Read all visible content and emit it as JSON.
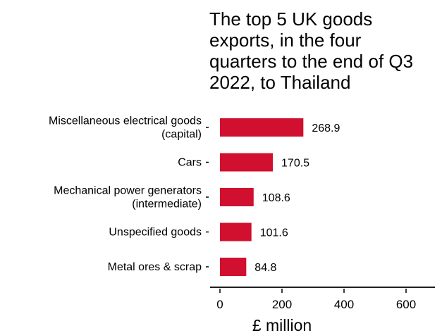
{
  "chart_data": {
    "type": "bar",
    "orientation": "horizontal",
    "title_lines": [
      "The top 5 UK goods",
      "exports, in the four",
      "quarters to the end of Q3",
      "2022, to Thailand"
    ],
    "categories": [
      [
        "Miscellaneous electrical goods",
        "(capital)"
      ],
      [
        "Cars"
      ],
      [
        "Mechanical power generators",
        "(intermediate)"
      ],
      [
        "Unspecified goods"
      ],
      [
        "Metal ores & scrap"
      ]
    ],
    "values": [
      268.9,
      170.5,
      108.6,
      101.6,
      84.8
    ],
    "value_labels": [
      "268.9",
      "170.5",
      "108.6",
      "101.6",
      "84.8"
    ],
    "xlabel": "£ million",
    "xlim": [
      0,
      680
    ],
    "xticks": [
      0,
      200,
      400,
      600
    ],
    "xtick_labels": [
      "0",
      "200",
      "400",
      "600"
    ],
    "bar_color": "#d0102e",
    "grid": false
  }
}
